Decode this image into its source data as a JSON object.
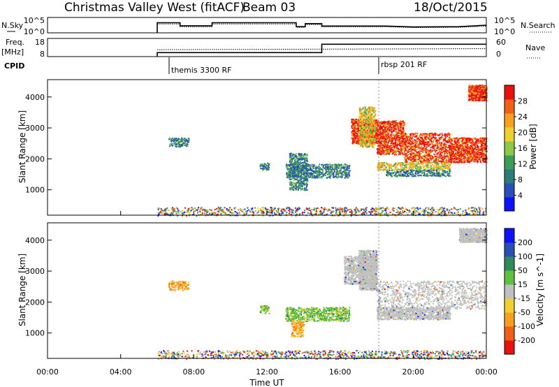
{
  "header": {
    "title": "Christmas Valley West (fitACF)",
    "beam": "Beam 03",
    "date": "18/Oct/2015"
  },
  "colors": {
    "power_scale": [
      "#1010ff",
      "#2a50b8",
      "#2e7c7a",
      "#3c9e58",
      "#8ec84a",
      "#f0d030",
      "#f5a020",
      "#f06018",
      "#e81010"
    ],
    "velocity_scale": [
      "#1010ff",
      "#2a50b8",
      "#2e8a5a",
      "#60c040",
      "#c0c0c0",
      "#f0d030",
      "#f5a020",
      "#f06018",
      "#e81010"
    ],
    "grey_scatter": "#c8c8c8"
  },
  "chart_data": [
    {
      "type": "line",
      "panel": "N.Sky / N.Search",
      "left_label": "N.Sky",
      "left_ticks": [
        "10^5",
        "10^0"
      ],
      "right_label": "N.Search",
      "right_ticks": [
        "10^5",
        "10^0"
      ],
      "ylim": [
        0,
        5
      ],
      "series": [
        {
          "style": "solid",
          "x": [
            0,
            6.0,
            6.0,
            7.25,
            7.25,
            9.0,
            9.0,
            13.6,
            13.6,
            14.1,
            14.1,
            15.0,
            15.0,
            18.5,
            20.0,
            22.5,
            24.0
          ],
          "y": [
            null,
            0,
            3.3,
            3.3,
            2.3,
            2.3,
            3.3,
            3.3,
            2.0,
            2.0,
            3.0,
            3.0,
            2.2,
            2.2,
            1.9,
            2.0,
            2.5
          ]
        },
        {
          "style": "dotted",
          "x": [
            6.0,
            7.25,
            7.25,
            9.0,
            9.0,
            13.6,
            13.6,
            14.1,
            14.1,
            15.0,
            15.0,
            18.5,
            20.0,
            22.5,
            24.0
          ],
          "y": [
            2.9,
            2.9,
            2.0,
            2.0,
            2.9,
            2.9,
            1.8,
            1.8,
            2.7,
            2.7,
            2.0,
            2.0,
            1.7,
            1.8,
            2.2
          ]
        }
      ]
    },
    {
      "type": "line",
      "panel": "Freq / Nave",
      "left_label": "Freq.",
      "left_unit": "[MHz]",
      "left_ticks": [
        "18",
        "8"
      ],
      "right_label": "Nave",
      "right_ticks": [
        "60",
        "0"
      ],
      "ylim": [
        8,
        18
      ],
      "series": [
        {
          "style": "solid",
          "x": [
            6.0,
            6.0,
            15.0,
            15.0,
            24.0
          ],
          "y": [
            8,
            10.2,
            10.2,
            14.8,
            14.8
          ]
        },
        {
          "style": "dotted",
          "x": [
            6.0,
            24.0
          ],
          "y": [
            11.8,
            12.4
          ]
        }
      ]
    },
    {
      "type": "table",
      "panel": "CPID",
      "label": "CPID",
      "entries": [
        {
          "x": 6.0,
          "text": "themis 3300 RF"
        },
        {
          "x": 18.0,
          "text": "rbsp 201 RF"
        }
      ]
    },
    {
      "type": "heatmap",
      "panel": "Power",
      "ylabel": "Slant Range [km]",
      "yticks": [
        1000,
        2000,
        3000,
        4000
      ],
      "ylim": [
        180,
        4560
      ],
      "colorbar_label": "Power [dB]",
      "colorbar_ticks": [
        4,
        8,
        12,
        16,
        20,
        24,
        28
      ],
      "regions": [
        {
          "t": [
            16.6,
            18.0
          ],
          "r": [
            2500,
            3300
          ],
          "level": "high"
        },
        {
          "t": [
            17.0,
            17.9
          ],
          "r": [
            2400,
            3700
          ],
          "level": "mid"
        },
        {
          "t": [
            18.0,
            19.5
          ],
          "r": [
            2150,
            3250
          ],
          "level": "high"
        },
        {
          "t": [
            19.5,
            22.0
          ],
          "r": [
            1900,
            2850
          ],
          "level": "high"
        },
        {
          "t": [
            22.0,
            24.0
          ],
          "r": [
            1900,
            2700
          ],
          "level": "high"
        },
        {
          "t": [
            18.0,
            22.0
          ],
          "r": [
            1650,
            1900
          ],
          "level": "mid"
        },
        {
          "t": [
            18.5,
            22.0
          ],
          "r": [
            1450,
            1650
          ],
          "level": "low"
        },
        {
          "t": [
            13.0,
            16.5
          ],
          "r": [
            1400,
            1850
          ],
          "level": "low"
        },
        {
          "t": [
            13.2,
            14.2
          ],
          "r": [
            1000,
            2200
          ],
          "level": "low"
        },
        {
          "t": [
            11.6,
            12.1
          ],
          "r": [
            1650,
            1900
          ],
          "level": "low"
        },
        {
          "t": [
            23.0,
            24.0
          ],
          "r": [
            3900,
            4400
          ],
          "level": "high"
        },
        {
          "t": [
            6.0,
            24.0
          ],
          "r": [
            180,
            450
          ],
          "level": "mixed"
        },
        {
          "t": [
            6.6,
            7.7
          ],
          "r": [
            2400,
            2700
          ],
          "level": "low"
        }
      ]
    },
    {
      "type": "heatmap",
      "panel": "Velocity",
      "ylabel": "Slant Range [km]",
      "yticks": [
        1000,
        2000,
        3000,
        4000
      ],
      "ylim": [
        180,
        4560
      ],
      "colorbar_label": "Velocity [m s^-1]",
      "colorbar_ticks": [
        200,
        100,
        50,
        15,
        -15,
        -50,
        -100,
        -200
      ],
      "xlabel": "Time UT",
      "xticks": [
        "00:00",
        "04:00",
        "08:00",
        "12:00",
        "16:00",
        "20:00",
        "00:00"
      ],
      "xlim": [
        0,
        24
      ],
      "regions": [
        {
          "t": [
            16.2,
            18.0
          ],
          "r": [
            2600,
            3500
          ],
          "level": "grey"
        },
        {
          "t": [
            17.0,
            18.0
          ],
          "r": [
            2400,
            3700
          ],
          "level": "grey"
        },
        {
          "t": [
            18.0,
            24.0
          ],
          "r": [
            1800,
            2700
          ],
          "level": "grey"
        },
        {
          "t": [
            18.0,
            22.0
          ],
          "r": [
            1450,
            1850
          ],
          "level": "grey"
        },
        {
          "t": [
            13.0,
            16.5
          ],
          "r": [
            1400,
            1850
          ],
          "level": "green"
        },
        {
          "t": [
            13.3,
            14.0
          ],
          "r": [
            900,
            1400
          ],
          "level": "orange"
        },
        {
          "t": [
            11.6,
            12.1
          ],
          "r": [
            1650,
            1900
          ],
          "level": "green"
        },
        {
          "t": [
            22.5,
            24.0
          ],
          "r": [
            3950,
            4400
          ],
          "level": "grey"
        },
        {
          "t": [
            6.0,
            24.0
          ],
          "r": [
            180,
            450
          ],
          "level": "mixed"
        },
        {
          "t": [
            6.6,
            7.7
          ],
          "r": [
            2400,
            2700
          ],
          "level": "orange"
        }
      ]
    }
  ]
}
